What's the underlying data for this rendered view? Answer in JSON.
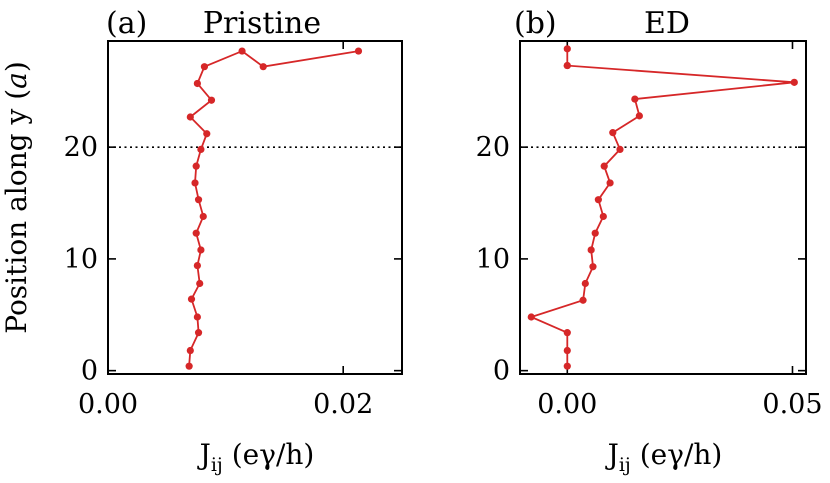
{
  "chart_data": [
    {
      "type": "line",
      "panel_label": "(a)",
      "title": "Pristine",
      "xlabel": "J_ij (eγ/h)",
      "xlabel_parts": {
        "main": "J",
        "sub": "ij",
        "unit": " (eγ/h)"
      },
      "ylabel": "Position along y (a)",
      "ylabel_parts": {
        "main": "Position along y (",
        "italic": "a",
        "close": ")"
      },
      "xlim": [
        0.0,
        0.025
      ],
      "ylim": [
        -0.3,
        29.5
      ],
      "xticks": [
        0.0,
        0.02
      ],
      "xtick_labels": [
        "0.00",
        "0.02"
      ],
      "yticks": [
        0,
        10,
        20
      ],
      "ytick_labels": [
        "0",
        "10",
        "20"
      ],
      "hline_y": 20,
      "color": "#d62728",
      "series": [
        {
          "x": [
            0.0069,
            0.007,
            0.0077,
            0.0076,
            0.0071,
            0.0078,
            0.0076,
            0.0079,
            0.0075,
            0.0081,
            0.0077,
            0.0074,
            0.0075,
            0.0079,
            0.0084,
            0.007,
            0.0088,
            0.0076,
            0.0082,
            0.0114,
            0.0132,
            0.0213
          ],
          "y": [
            0.4,
            1.8,
            3.4,
            4.8,
            6.4,
            7.8,
            9.4,
            10.8,
            12.3,
            13.8,
            15.3,
            16.8,
            18.3,
            19.8,
            21.2,
            22.7,
            24.2,
            25.7,
            27.2,
            28.6,
            27.2,
            28.6
          ]
        }
      ]
    },
    {
      "type": "line",
      "panel_label": "(b)",
      "title": "ED",
      "xlabel": "J_ij (eγ/h)",
      "xlabel_parts": {
        "main": "J",
        "sub": "ij",
        "unit": " (eγ/h)"
      },
      "xlim": [
        -0.0105,
        0.053
      ],
      "ylim": [
        -0.3,
        29.5
      ],
      "xticks": [
        0.0,
        0.05
      ],
      "xtick_labels": [
        "0.00",
        "0.05"
      ],
      "yticks": [
        0,
        10,
        20
      ],
      "ytick_labels": [
        "0",
        "10",
        "20"
      ],
      "hline_y": 20,
      "color": "#d62728",
      "series": [
        {
          "x": [
            0.0,
            0.0,
            0.0,
            -0.008,
            0.0035,
            0.004,
            0.0057,
            0.0053,
            0.0062,
            0.008,
            0.0069,
            0.0095,
            0.0082,
            0.0117,
            0.0101,
            0.016,
            0.015,
            0.0504,
            0.0,
            0.0,
            0.0
          ],
          "y": [
            0.4,
            1.8,
            3.4,
            4.8,
            6.3,
            7.8,
            9.3,
            10.8,
            12.3,
            13.8,
            15.3,
            16.8,
            18.3,
            19.8,
            21.3,
            22.8,
            24.3,
            25.8,
            27.3,
            28.8,
            27.3
          ]
        }
      ]
    }
  ]
}
